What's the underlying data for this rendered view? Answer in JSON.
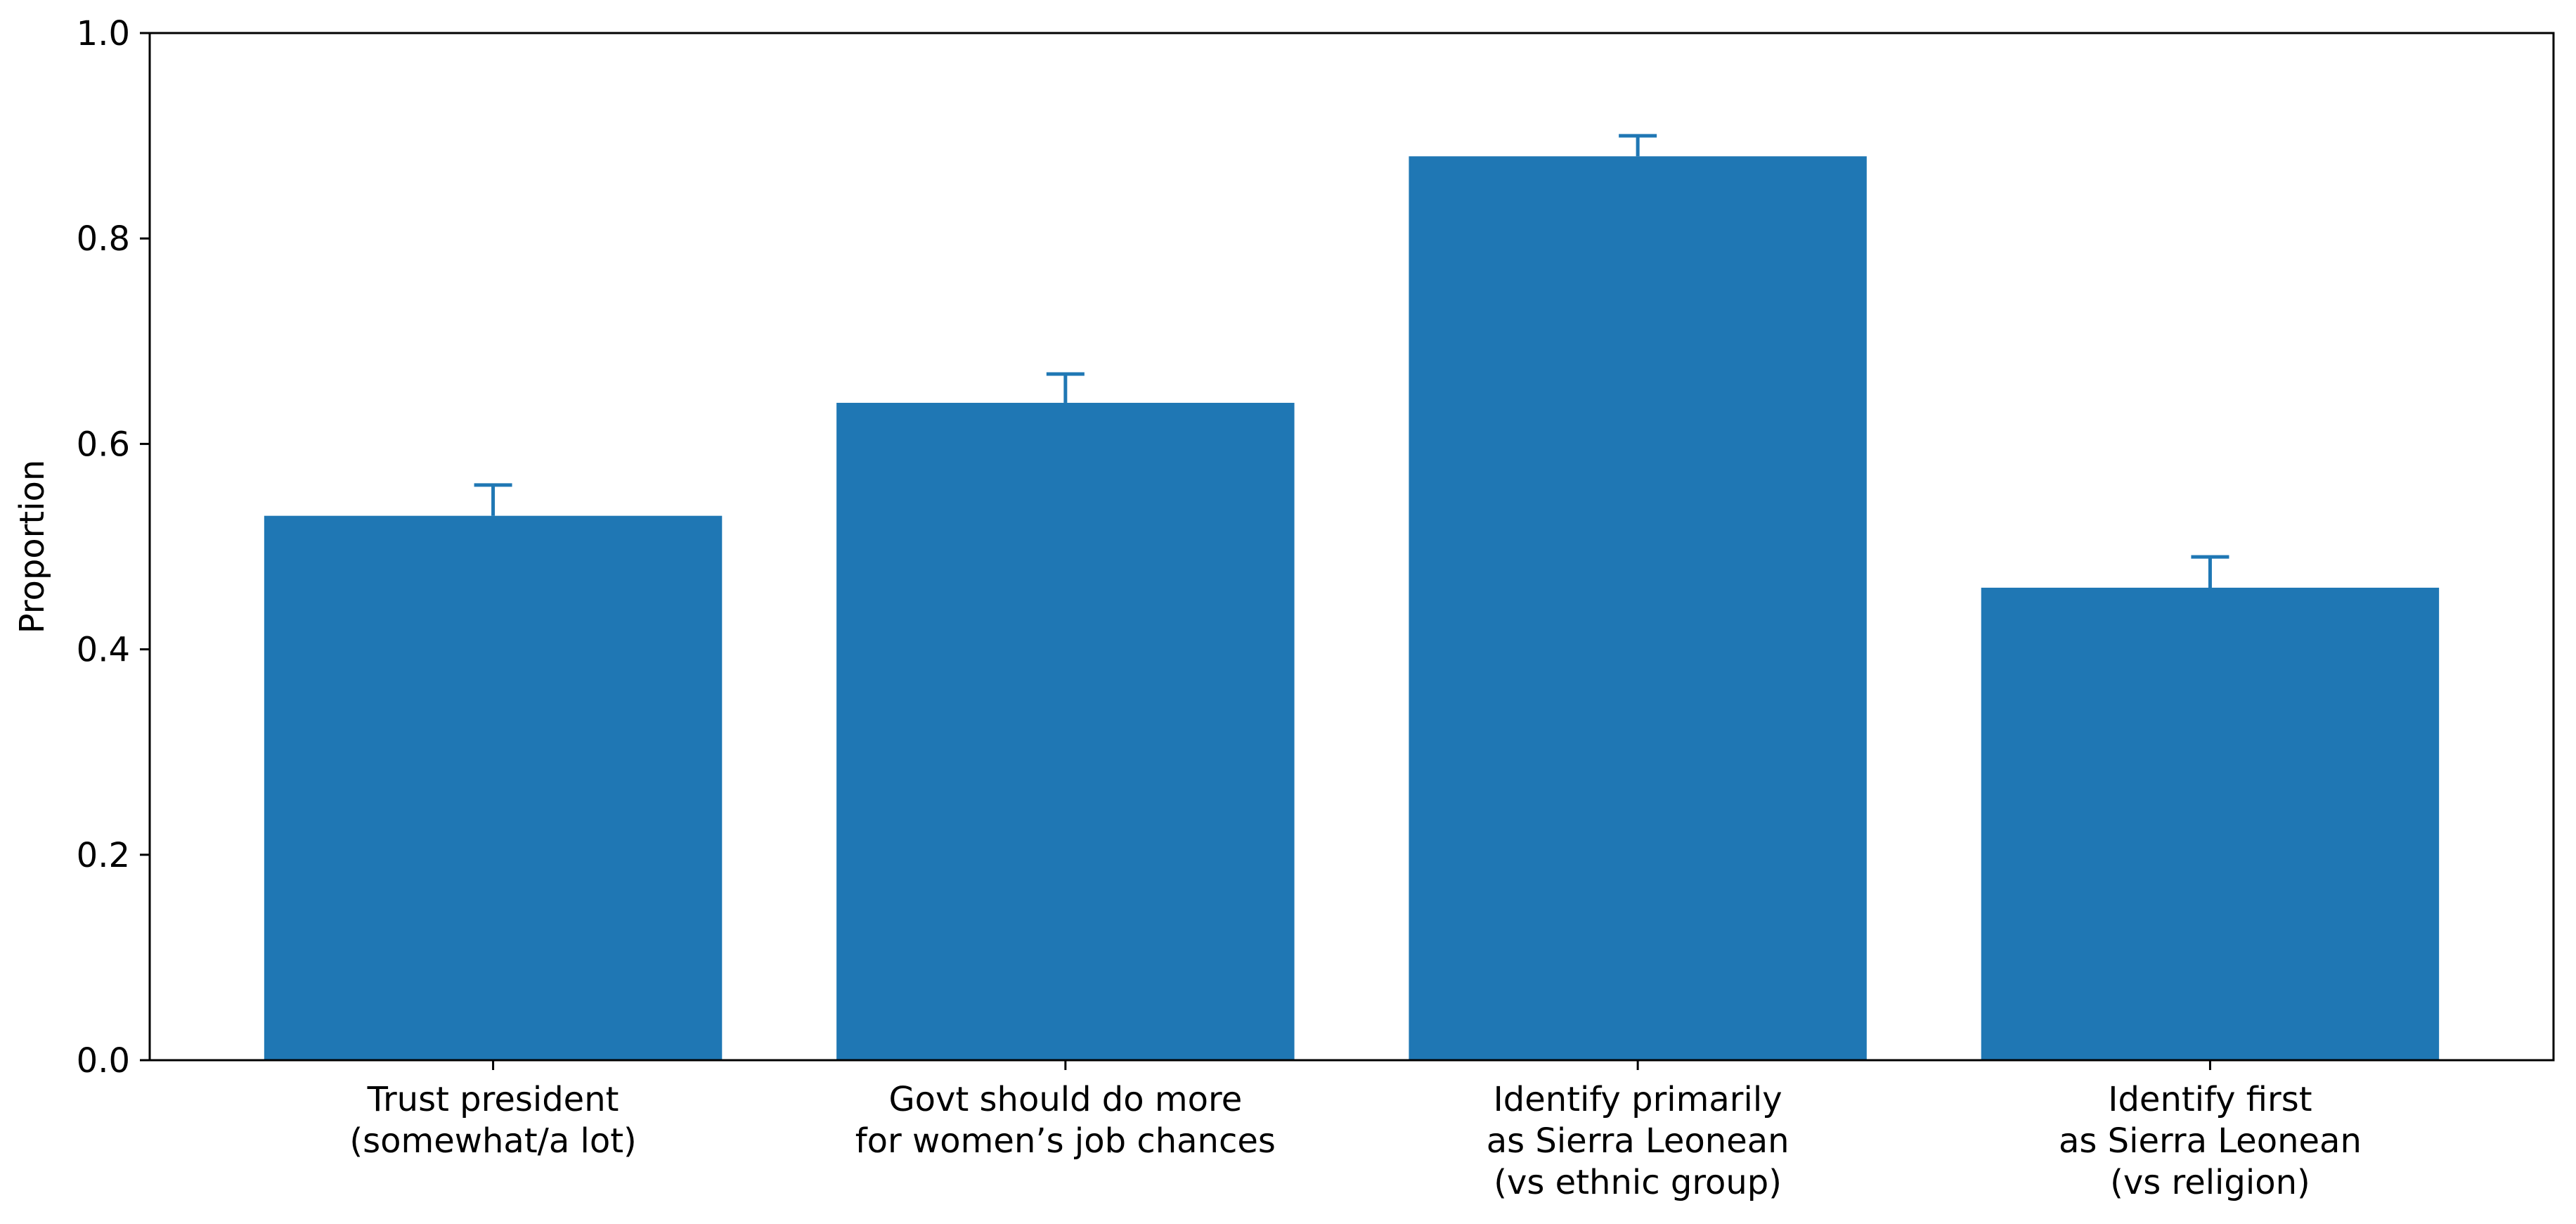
{
  "chart_data": {
    "type": "bar",
    "title": "",
    "xlabel": "",
    "ylabel": "Proportion",
    "ylim": [
      0.0,
      1.0
    ],
    "yticks": [
      "0.0",
      "0.2",
      "0.4",
      "0.6",
      "0.8",
      "1.0"
    ],
    "grid": false,
    "categories": [
      [
        "Trust president",
        "(somewhat/a lot)"
      ],
      [
        "Govt should do more",
        "for women’s job chances"
      ],
      [
        "Identify primarily",
        "as Sierra Leonean",
        "(vs ethnic group)"
      ],
      [
        "Identify first",
        "as Sierra Leonean",
        "(vs religion)"
      ]
    ],
    "values": [
      0.53,
      0.64,
      0.88,
      0.46
    ],
    "error_upper": [
      0.56,
      0.668,
      0.9,
      0.49
    ],
    "bar_color": "#1f77b4",
    "error_color": "#1f77b4"
  }
}
